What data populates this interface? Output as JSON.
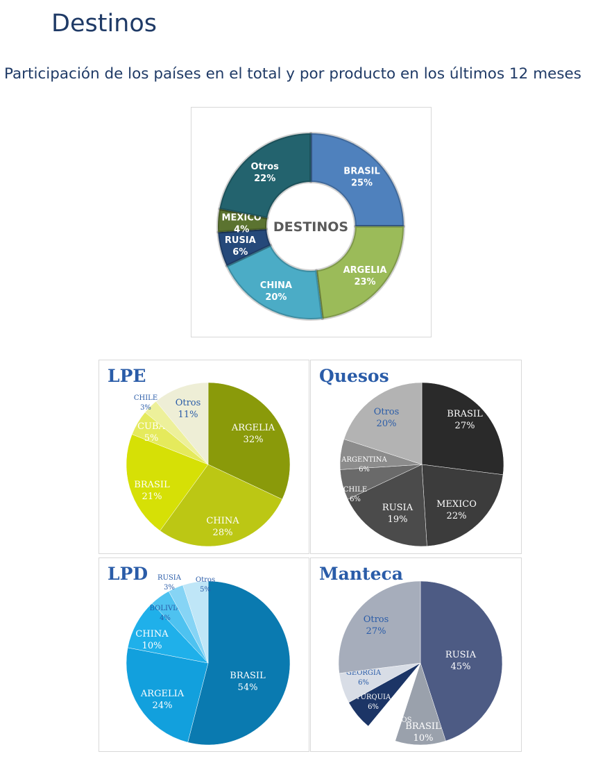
{
  "page": {
    "title": "Destinos",
    "subtitle": "Participación de los países en el total y por producto en los últimos 12 meses"
  },
  "chart_data": [
    {
      "type": "pie",
      "variant": "donut",
      "title": "",
      "center_label": "DESTINOS",
      "categories": [
        "BRASIL",
        "ARGELIA",
        "CHINA",
        "RUSIA",
        "MEXICO",
        "Otros"
      ],
      "values": [
        25,
        23,
        20,
        6,
        4,
        22
      ],
      "unit": "%",
      "colors": [
        "#4f81bd",
        "#9bbb59",
        "#4bacc6",
        "#25497a",
        "#5b7330",
        "#23636e"
      ]
    },
    {
      "type": "pie",
      "title": "LPE",
      "categories": [
        "ARGELIA",
        "CHINA",
        "BRASIL",
        "CUBA",
        "CHILE",
        "Otros"
      ],
      "values": [
        32,
        28,
        21,
        5,
        3,
        11
      ],
      "unit": "%",
      "colors": [
        "#8a9a0a",
        "#bcc714",
        "#d6e006",
        "#e5ea5c",
        "#edf09a",
        "#eeeed6"
      ]
    },
    {
      "type": "pie",
      "title": "Quesos",
      "categories": [
        "BRASIL",
        "MEXICO",
        "RUSIA",
        "CHILE",
        "ARGENTINA",
        "Otros"
      ],
      "values": [
        27,
        22,
        19,
        6,
        6,
        20
      ],
      "unit": "%",
      "colors": [
        "#2a2a2a",
        "#3c3c3c",
        "#4b4b4b",
        "#6a6a6a",
        "#8c8c8c",
        "#b3b3b3"
      ]
    },
    {
      "type": "pie",
      "title": "LPD",
      "categories": [
        "BRASIL",
        "ARGELIA",
        "CHINA",
        "BOLIVIA",
        "RUSIA",
        "Otros"
      ],
      "values": [
        54,
        24,
        10,
        4,
        3,
        5
      ],
      "unit": "%",
      "colors": [
        "#0a7ab0",
        "#12a0dd",
        "#1fb0ea",
        "#4ec2f0",
        "#86d4f5",
        "#bfe6f7"
      ]
    },
    {
      "type": "pie",
      "title": "Manteca",
      "categories": [
        "RUSIA",
        "BRASIL",
        "MARRUECOS",
        "TURQUIA",
        "GEORGIA",
        "Otros"
      ],
      "values": [
        45,
        10,
        6,
        6,
        6,
        27
      ],
      "unit": "%",
      "colors": [
        "#4d5b84",
        "#9aa1ac",
        "#ffffff",
        "#1c3566",
        "#d8dde6",
        "#a6adbb"
      ]
    }
  ]
}
